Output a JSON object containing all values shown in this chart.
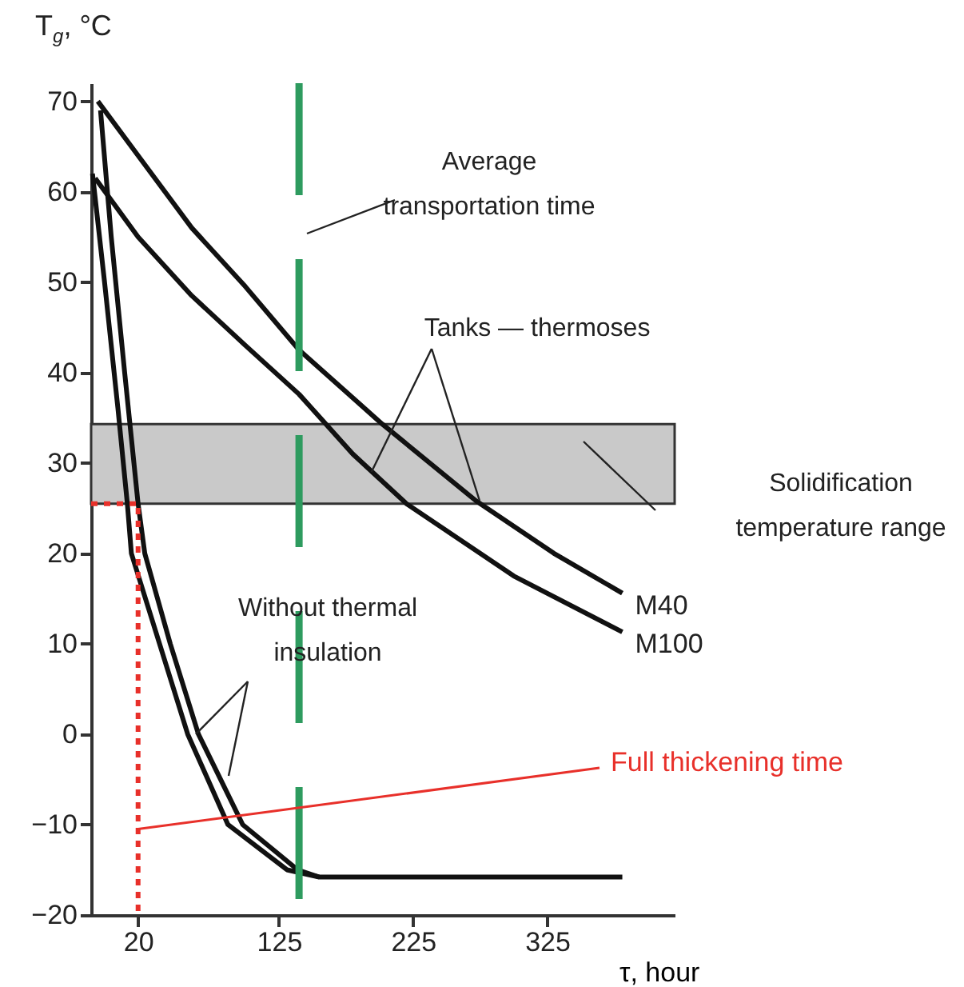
{
  "chart_data": {
    "type": "line",
    "ylabel": "T$_{g}$, °C",
    "xlabel": "τ, hour",
    "xlim": [
      -15,
      420
    ],
    "xticks": [
      20,
      125,
      225,
      325
    ],
    "ylim": [
      -20,
      72
    ],
    "yticks": [
      -20,
      -10,
      0,
      10,
      20,
      30,
      40,
      50,
      60,
      70
    ],
    "grid": false,
    "legend": false,
    "series": [
      {
        "name": "M40",
        "color": "#111111",
        "x": [
          -10,
          20,
          60,
          100,
          140,
          202,
          272,
          330,
          381
        ],
        "values": [
          70,
          64,
          56,
          49.5,
          42.5,
          34.3,
          25.8,
          20,
          15.6
        ]
      },
      {
        "name": "M100",
        "color": "#111111",
        "x": [
          -12,
          20,
          60,
          100,
          140,
          180,
          220,
          300,
          381
        ],
        "values": [
          61.5,
          55,
          48.5,
          43,
          37.6,
          31,
          25.5,
          17.5,
          11.3
        ]
      },
      {
        "color": "#111111",
        "x": [
          -8,
          0,
          10,
          20,
          25,
          44,
          65,
          98,
          139,
          155,
          381
        ],
        "values": [
          69,
          55,
          40,
          25.5,
          20,
          10,
          0,
          -10,
          -15,
          -15.8,
          -15.8
        ]
      },
      {
        "color": "#111111",
        "x": [
          -14,
          -5,
          5,
          12,
          15,
          36,
          57,
          87,
          131,
          155
        ],
        "values": [
          62,
          50,
          36,
          25.5,
          20,
          10,
          0,
          -10,
          -15,
          -15.8
        ]
      },
      {
        "color": "#e8302a",
        "line_style": "dotted",
        "x": [
          -15,
          20,
          20
        ],
        "values": [
          25.5,
          25.5,
          -20
        ]
      }
    ],
    "ref_lines": [
      {
        "axis": "x",
        "value": 140,
        "label": "Average transportation time",
        "color": "#2e9b5f",
        "line_style": "dashed"
      }
    ],
    "bands": [
      {
        "axis": "y",
        "from": 25.5,
        "to": 34.3,
        "label": "Solidification temperature range",
        "color": "#c9c9c9"
      }
    ],
    "annotations": [
      {
        "text": "Tanks — thermoses",
        "x": 194,
        "y": 29
      },
      {
        "text": "Without thermal insulation",
        "x": 63,
        "y": 0
      },
      {
        "text": "Full thickening time",
        "x": 20,
        "y": -10.5
      }
    ]
  }
}
